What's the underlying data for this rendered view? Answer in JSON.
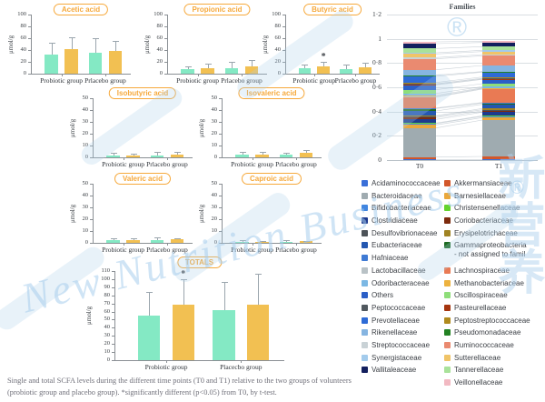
{
  "caption": "Single and total SCFA levels during the different time points (T0 and T1) relative to the two groups of volunteers (probiotic group and placebo group). *significantly different (p<0.05) from T0, by t-test.",
  "watermark": {
    "script_text": "New Nutrition Business",
    "cjk_text": "新营养",
    "registered_mark": "®"
  },
  "colors": {
    "t0_bar": "#84e9c4",
    "t1_bar": "#f2c052",
    "error": "#9aa5ad",
    "pill": "#f6a93c",
    "axis": "#8a8f94",
    "grid": "#d9dee2",
    "grid_zero": "#b9c1c7",
    "text": "#33393f",
    "caption": "#70707a",
    "watermark": "#bcd9ee",
    "connector": "rgba(140,155,168,0.45)"
  },
  "chart_data": [
    {
      "type": "bar",
      "title": "Acetic acid",
      "ylabel": "μmol/g",
      "ylim": [
        0,
        100
      ],
      "yticks": [
        0,
        20,
        40,
        60,
        80,
        100
      ],
      "categories": [
        "Probiotic group",
        "Prlacebo group"
      ],
      "series": [
        {
          "name": "T0",
          "values": [
            33,
            36
          ],
          "errors": [
            19,
            24
          ]
        },
        {
          "name": "T1",
          "values": [
            41,
            38
          ],
          "errors": [
            21,
            18
          ]
        }
      ]
    },
    {
      "type": "bar",
      "title": "Propionic acid",
      "ylabel": "μmol/g",
      "ylim": [
        0,
        100
      ],
      "yticks": [
        0,
        20,
        40,
        60,
        80,
        100
      ],
      "categories": [
        "Probiotic group",
        "Prlacebo group"
      ],
      "series": [
        {
          "name": "T0",
          "values": [
            8,
            10
          ],
          "errors": [
            5,
            10
          ]
        },
        {
          "name": "T1",
          "values": [
            9,
            13
          ],
          "errors": [
            8,
            10
          ]
        }
      ]
    },
    {
      "type": "bar",
      "title": "Butyric acid",
      "ylabel": "μmol/g",
      "ylim": [
        0,
        100
      ],
      "yticks": [
        0,
        20,
        40,
        60,
        80,
        100
      ],
      "categories": [
        "Probiotic group",
        "Prlacebo group"
      ],
      "series": [
        {
          "name": "T0",
          "values": [
            9,
            8
          ],
          "errors": [
            7,
            7
          ]
        },
        {
          "name": "T1",
          "values": [
            12,
            11
          ],
          "errors": [
            8,
            8
          ]
        }
      ],
      "star": {
        "category": 0,
        "series": 1,
        "label": "*"
      }
    },
    {
      "type": "bar",
      "title": "Isobutyric acid",
      "ylabel": "μmol/g",
      "ylim": [
        0,
        50
      ],
      "yticks": [
        0,
        10,
        20,
        30,
        40,
        50
      ],
      "categories": [
        "Probiotic group",
        "Prlacebo group"
      ],
      "series": [
        {
          "name": "T0",
          "values": [
            1.5,
            1.8
          ],
          "errors": [
            2,
            2.7
          ]
        },
        {
          "name": "T1",
          "values": [
            1.8,
            2.5
          ],
          "errors": [
            1.2,
            2
          ]
        }
      ]
    },
    {
      "type": "bar",
      "title": "Isovaleric acid",
      "ylabel": "μmol/g",
      "ylim": [
        0,
        50
      ],
      "yticks": [
        0,
        10,
        20,
        30,
        40,
        50
      ],
      "categories": [
        "Probiotic group",
        "Prlacebo group"
      ],
      "series": [
        {
          "name": "T0",
          "values": [
            2.5,
            2.5
          ],
          "errors": [
            2,
            1.5
          ]
        },
        {
          "name": "T1",
          "values": [
            2.5,
            3.5
          ],
          "errors": [
            2,
            2.5
          ]
        }
      ]
    },
    {
      "type": "bar",
      "title": "Valeric acid",
      "ylabel": "μmol/g",
      "ylim": [
        0,
        50
      ],
      "yticks": [
        0,
        10,
        20,
        30,
        40,
        50
      ],
      "categories": [
        "Probiotic group",
        "Prlacebo group"
      ],
      "series": [
        {
          "name": "T0",
          "values": [
            2,
            2.5
          ],
          "errors": [
            2,
            2
          ]
        },
        {
          "name": "T1",
          "values": [
            2.5,
            2.8
          ],
          "errors": [
            1,
            1.2
          ]
        }
      ]
    },
    {
      "type": "bar",
      "title": "Caproic acid",
      "ylabel": "μmol/g",
      "ylim": [
        0,
        50
      ],
      "yticks": [
        0,
        10,
        20,
        30,
        40,
        50
      ],
      "categories": [
        "Probiotic group",
        "Prlacebo group"
      ],
      "series": [
        {
          "name": "T0",
          "values": [
            1,
            1
          ],
          "errors": [
            1.5,
            1
          ]
        },
        {
          "name": "T1",
          "values": [
            1,
            1.2
          ],
          "errors": [
            0.5,
            0.3
          ]
        }
      ]
    },
    {
      "type": "bar",
      "title": "TOTALS",
      "ylabel": "μmol/g",
      "ylim": [
        0,
        110
      ],
      "yticks": [
        0,
        10,
        20,
        30,
        40,
        50,
        60,
        70,
        80,
        90,
        100,
        110
      ],
      "categories": [
        "Probiotic group",
        "Placecbo group"
      ],
      "series": [
        {
          "name": "T0",
          "values": [
            55,
            62
          ],
          "errors": [
            29,
            35
          ]
        },
        {
          "name": "T1",
          "values": [
            68,
            68
          ],
          "errors": [
            32,
            39
          ]
        }
      ],
      "star": {
        "category": 0,
        "series": 1,
        "label": "*"
      }
    },
    {
      "type": "stacked-bar",
      "title": "Families",
      "categories": [
        "T0",
        "T1"
      ],
      "ylim": [
        0,
        1.2
      ],
      "ytick_values": [
        0,
        0.2,
        0.4,
        0.6,
        0.8,
        1,
        1.2
      ],
      "ytick_labels": [
        "0",
        "0·2",
        "0·4",
        "0·6",
        "0·8",
        "1",
        "1·2"
      ],
      "families": [
        {
          "name": "Acidaminococcaceae",
          "color": "#3a6fd8",
          "values": [
            0.005,
            0.005
          ]
        },
        {
          "name": "Akkermansiaceae",
          "color": "#d2572b",
          "values": [
            0.02,
            0.025
          ]
        },
        {
          "name": "Bacteroidaceae",
          "color": "#9fabb0",
          "values": [
            0.24,
            0.3
          ]
        },
        {
          "name": "Barnesiellaceae",
          "color": "#eaa83c",
          "values": [
            0.025,
            0.02
          ]
        },
        {
          "name": "Bifidobacteriaceae",
          "color": "#4186e0",
          "values": [
            0.01,
            0.01
          ]
        },
        {
          "name": "Christensenellaceae",
          "color": "#63d32e",
          "values": [
            0.005,
            0.005
          ]
        },
        {
          "name": "Clostridiaceae",
          "color": "#1d3a8f",
          "values": [
            0.03,
            0.03
          ]
        },
        {
          "name": "Coriobacteriaceae",
          "color": "#7d2a0d",
          "values": [
            0.015,
            0.01
          ]
        },
        {
          "name": "Desulfovibrionaceae",
          "color": "#4d5359",
          "values": [
            0.01,
            0.01
          ]
        },
        {
          "name": "Erysipelotrichaceae",
          "color": "#a08323",
          "values": [
            0.005,
            0.01
          ]
        },
        {
          "name": "Eubacteriaceae",
          "color": "#2457b0",
          "values": [
            0.04,
            0.035
          ]
        },
        {
          "name": "Gammaproteobacteria\n- not assigned to famil",
          "color": "#1d6b21",
          "values": [
            0.02,
            0.01
          ]
        },
        {
          "name": "Hafniaceae",
          "color": "#3f7ad4",
          "values": [
            0.005,
            0.005
          ]
        },
        {
          "name": "Lachnospiraceae",
          "color": "#e97a54",
          "values": [
            0.09,
            0.11
          ]
        },
        {
          "name": "Lactobacillaceae",
          "color": "#b9c2c6",
          "values": [
            0.005,
            0.005
          ]
        },
        {
          "name": "Methanobacteriaceae",
          "color": "#edb23f",
          "values": [
            0.01,
            0.005
          ]
        },
        {
          "name": "Odoribacteraceae",
          "color": "#7cb8e4",
          "values": [
            0.015,
            0.01
          ]
        },
        {
          "name": "Oscillospiraceae",
          "color": "#8fde7a",
          "values": [
            0.03,
            0.025
          ]
        },
        {
          "name": "Others",
          "color": "#2b5fc7",
          "values": [
            0.04,
            0.035
          ]
        },
        {
          "name": "Pasteurellaceae",
          "color": "#a5350f",
          "values": [
            0.005,
            0.005
          ]
        },
        {
          "name": "Peptococcaceae",
          "color": "#50585e",
          "values": [
            0.005,
            0.005
          ]
        },
        {
          "name": "Peptostreptococcaceae",
          "color": "#b08a1e",
          "values": [
            0.01,
            0.01
          ]
        },
        {
          "name": "Prevotellaceae",
          "color": "#2e6bd6",
          "values": [
            0.05,
            0.04
          ]
        },
        {
          "name": "Pseudomonadaceae",
          "color": "#238223",
          "values": [
            0.01,
            0.005
          ]
        },
        {
          "name": "Rikenellaceae",
          "color": "#86b5e1",
          "values": [
            0.045,
            0.05
          ]
        },
        {
          "name": "Ruminococcaceae",
          "color": "#ea8a70",
          "values": [
            0.09,
            0.08
          ]
        },
        {
          "name": "Streptococcaceae",
          "color": "#c9d2d6",
          "values": [
            0.01,
            0.01
          ]
        },
        {
          "name": "Sutterellaceae",
          "color": "#f0c468",
          "values": [
            0.03,
            0.025
          ]
        },
        {
          "name": "Synergistaceae",
          "color": "#a3cbec",
          "values": [
            0.01,
            0.01
          ]
        },
        {
          "name": "Tannerellaceae",
          "color": "#a9e29a",
          "values": [
            0.035,
            0.03
          ]
        },
        {
          "name": "Vallitaleaceae",
          "color": "#131f5e",
          "values": [
            0.04,
            0.035
          ]
        },
        {
          "name": "Veillonellaceae",
          "color": "#f2b9c2",
          "values": [
            0.015,
            0.01
          ]
        }
      ]
    }
  ]
}
